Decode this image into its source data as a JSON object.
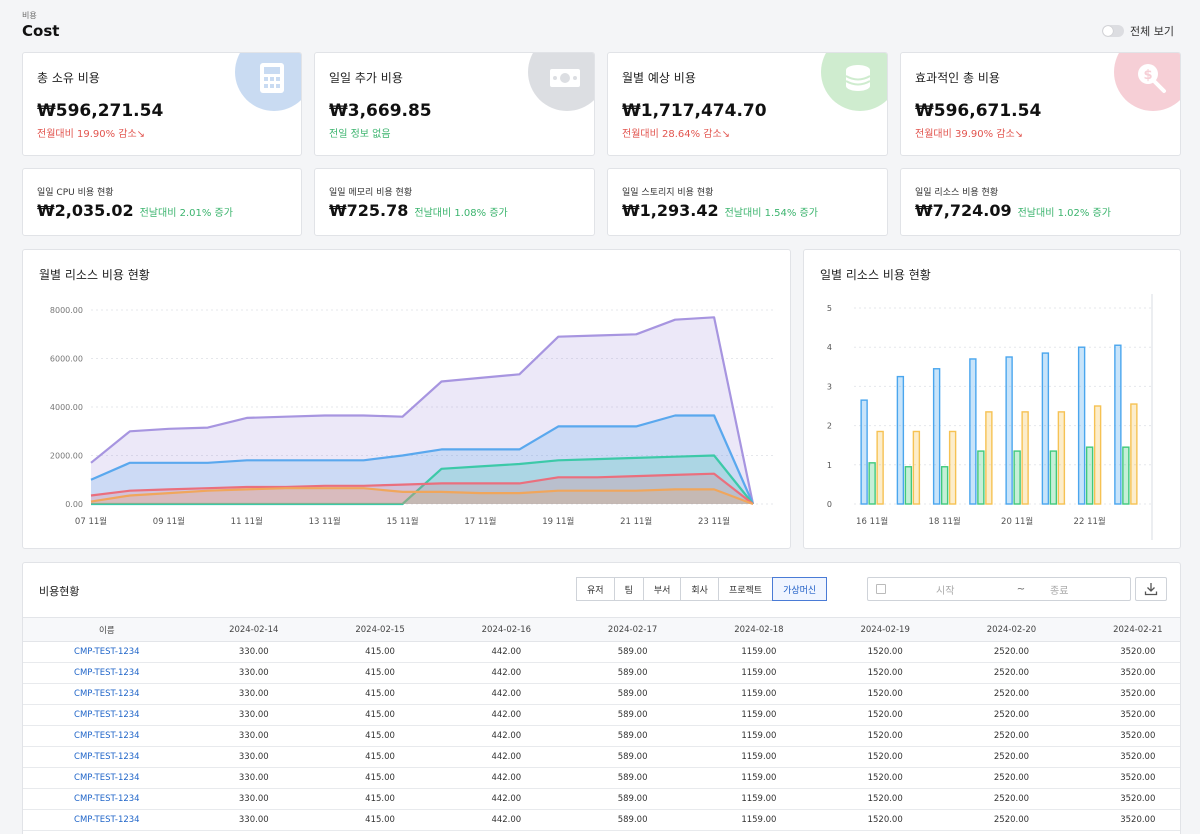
{
  "header": {
    "breadcrumb": "비용",
    "title": "Cost",
    "toggle_label": "전체 보기"
  },
  "kpis": [
    {
      "label": "총 소유 비용",
      "value": "₩596,271.54",
      "note": "전월대비 19.90% 감소↘",
      "note_status": "down",
      "icon": "calculator-icon",
      "icon_color": "#c9dbf2"
    },
    {
      "label": "일일 추가 비용",
      "value": "₩3,669.85",
      "note": "전일 정보 없음",
      "note_status": "neutral",
      "icon": "cash-icon",
      "icon_color": "#dcdee2"
    },
    {
      "label": "월별 예상 비용",
      "value": "₩1,717,474.70",
      "note": "전월대비 28.64% 감소↘",
      "note_status": "down",
      "icon": "coins-icon",
      "icon_color": "#cfeccf"
    },
    {
      "label": "효과적인 총 비용",
      "value": "₩596,671.54",
      "note": "전월대비 39.90% 감소↘",
      "note_status": "down",
      "icon": "dollar-search-icon",
      "icon_color": "#f6cfd6"
    }
  ],
  "daily": [
    {
      "label": "일일 CPU 비용 현황",
      "value": "₩2,035.02",
      "note": "전날대비 2.01% 증가"
    },
    {
      "label": "일일 메모리 비용 현황",
      "value": "₩725.78",
      "note": "전날대비 1.08% 증가"
    },
    {
      "label": "일일 스토리지 비용 현황",
      "value": "₩1,293.42",
      "note": "전날대비 1.54% 증가"
    },
    {
      "label": "일일 리소스 비용 현황",
      "value": "₩7,724.09",
      "note": "전날대비 1.02% 증가"
    }
  ],
  "chart_data": [
    {
      "type": "area",
      "title": "월별 리소스 비용 현황",
      "x": [
        "07 11월",
        "08 11월",
        "09 11월",
        "10 11월",
        "11 11월",
        "12 11월",
        "13 11월",
        "14 11월",
        "15 11월",
        "16 11월",
        "17 11월",
        "18 11월",
        "19 11월",
        "20 11월",
        "21 11월",
        "22 11월",
        "23 11월",
        "24 11월"
      ],
      "x_tick_labels": [
        "07 11월",
        "09 11월",
        "11 11월",
        "13 11월",
        "15 11월",
        "17 11월",
        "19 11월",
        "21 11월",
        "23 11월"
      ],
      "ylim": [
        0,
        8000
      ],
      "y_ticks": [
        "0.00",
        "2000.00",
        "4000.00",
        "6000.00",
        "8000.00"
      ],
      "series": [
        {
          "color": "#a795e0",
          "values": [
            1700,
            3000,
            3100,
            3150,
            3550,
            3600,
            3650,
            3650,
            3600,
            5050,
            5200,
            5350,
            6900,
            6950,
            7000,
            7600,
            7700,
            0
          ]
        },
        {
          "color": "#5aa8ee",
          "values": [
            1000,
            1700,
            1700,
            1700,
            1800,
            1800,
            1800,
            1800,
            2000,
            2250,
            2250,
            2250,
            3200,
            3200,
            3200,
            3650,
            3650,
            0
          ]
        },
        {
          "color": "#3cc9a8",
          "values": [
            0,
            0,
            0,
            0,
            0,
            0,
            0,
            0,
            0,
            1450,
            1550,
            1650,
            1800,
            1850,
            1900,
            1950,
            2000,
            0
          ]
        },
        {
          "color": "#ea6f7d",
          "values": [
            350,
            550,
            600,
            650,
            700,
            700,
            750,
            750,
            800,
            850,
            850,
            850,
            1100,
            1100,
            1150,
            1200,
            1250,
            0
          ]
        },
        {
          "color": "#f0a65c",
          "values": [
            100,
            350,
            450,
            550,
            600,
            650,
            650,
            650,
            500,
            500,
            450,
            450,
            550,
            550,
            550,
            600,
            600,
            0
          ]
        }
      ]
    },
    {
      "type": "bar",
      "title": "일별 리소스 비용 현황",
      "categories": [
        "16 11월",
        "17 11월",
        "18 11월",
        "19 11월",
        "20 11월",
        "21 11월",
        "22 11월",
        "23 11월"
      ],
      "x_tick_labels": [
        "16 11월",
        "18 11월",
        "20 11월",
        "22 11월"
      ],
      "ylim": [
        0,
        5
      ],
      "y_ticks": [
        "0",
        "1",
        "2",
        "3",
        "4",
        "5"
      ],
      "series": [
        {
          "color": "#4aa6ee",
          "values": [
            2.65,
            3.25,
            3.45,
            3.7,
            3.75,
            3.85,
            4.0,
            4.05
          ]
        },
        {
          "color": "#40c97c",
          "values": [
            1.05,
            0.95,
            0.95,
            1.35,
            1.35,
            1.35,
            1.45,
            1.45
          ]
        },
        {
          "color": "#f6c253",
          "values": [
            1.85,
            1.85,
            1.85,
            2.35,
            2.35,
            2.35,
            2.5,
            2.55
          ]
        }
      ]
    }
  ],
  "table": {
    "title": "비용현황",
    "filters": [
      {
        "label": "유저",
        "active": false
      },
      {
        "label": "팀",
        "active": false
      },
      {
        "label": "부서",
        "active": false
      },
      {
        "label": "회사",
        "active": false
      },
      {
        "label": "프로젝트",
        "active": false
      },
      {
        "label": "가상머신",
        "active": true
      }
    ],
    "date_start_placeholder": "시작",
    "date_separator": "~",
    "date_end_placeholder": "종료",
    "columns": [
      "이름",
      "2024-02-14",
      "2024-02-15",
      "2024-02-16",
      "2024-02-17",
      "2024-02-18",
      "2024-02-19",
      "2024-02-20",
      "2024-02-21"
    ],
    "rows": [
      [
        "CMP-TEST-1234",
        "330.00",
        "415.00",
        "442.00",
        "589.00",
        "1159.00",
        "1520.00",
        "2520.00",
        "3520.00"
      ],
      [
        "CMP-TEST-1234",
        "330.00",
        "415.00",
        "442.00",
        "589.00",
        "1159.00",
        "1520.00",
        "2520.00",
        "3520.00"
      ],
      [
        "CMP-TEST-1234",
        "330.00",
        "415.00",
        "442.00",
        "589.00",
        "1159.00",
        "1520.00",
        "2520.00",
        "3520.00"
      ],
      [
        "CMP-TEST-1234",
        "330.00",
        "415.00",
        "442.00",
        "589.00",
        "1159.00",
        "1520.00",
        "2520.00",
        "3520.00"
      ],
      [
        "CMP-TEST-1234",
        "330.00",
        "415.00",
        "442.00",
        "589.00",
        "1159.00",
        "1520.00",
        "2520.00",
        "3520.00"
      ],
      [
        "CMP-TEST-1234",
        "330.00",
        "415.00",
        "442.00",
        "589.00",
        "1159.00",
        "1520.00",
        "2520.00",
        "3520.00"
      ],
      [
        "CMP-TEST-1234",
        "330.00",
        "415.00",
        "442.00",
        "589.00",
        "1159.00",
        "1520.00",
        "2520.00",
        "3520.00"
      ],
      [
        "CMP-TEST-1234",
        "330.00",
        "415.00",
        "442.00",
        "589.00",
        "1159.00",
        "1520.00",
        "2520.00",
        "3520.00"
      ],
      [
        "CMP-TEST-1234",
        "330.00",
        "415.00",
        "442.00",
        "589.00",
        "1159.00",
        "1520.00",
        "2520.00",
        "3520.00"
      ]
    ]
  }
}
